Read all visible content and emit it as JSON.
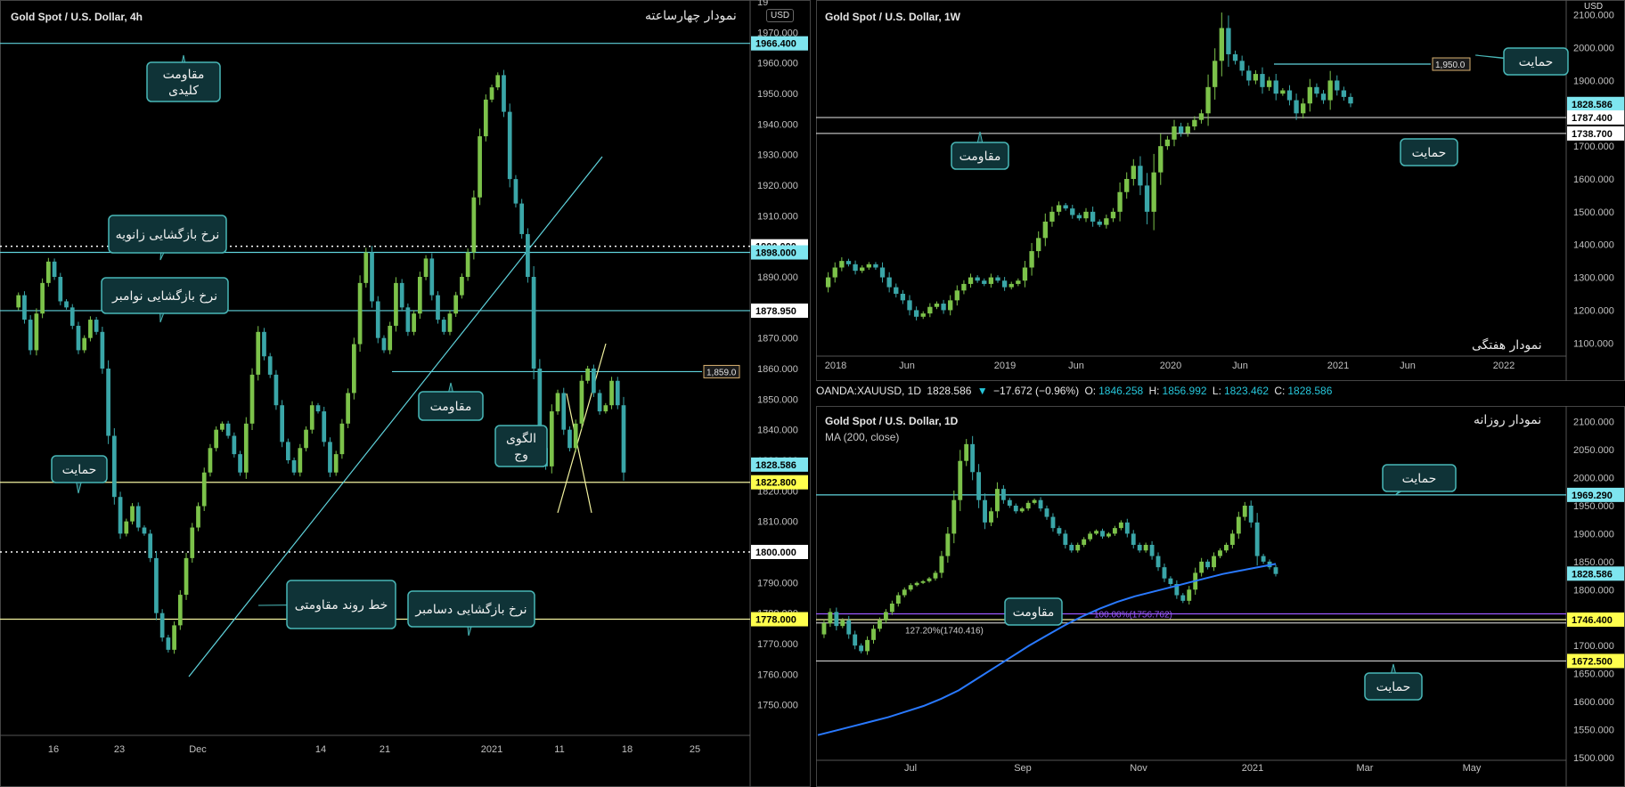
{
  "colors": {
    "bg": "#000000",
    "cyan": "#5fd3dc",
    "yellow": "#f3f3a0",
    "teal_box": "#0f3337",
    "teal_border": "#49b7b7",
    "candle": "#7cc24a",
    "candle_dn": "#3aa6a8",
    "ma": "#2979ff",
    "fib": "#9b59ff",
    "badge_cyan": "#7ee5ef",
    "badge_yellow": "#ffff4d",
    "badge_white": "#ffffff"
  },
  "info_bar": {
    "symbol": "OANDA:XAUUSD, 1D",
    "last": "1828.586",
    "arrow": "▼",
    "change": "−17.672 (−0.96%)",
    "o_label": "O:",
    "o": "1846.258",
    "h_label": "H:",
    "h": "1856.992",
    "l_label": "L:",
    "l": "1823.462",
    "c_label": "C:",
    "c": "1828.586"
  },
  "chart_data": [
    {
      "id": "h4",
      "type": "line",
      "title": "Gold Spot / U.S. Dollar, 4h",
      "subtitle_fa": "نمودار چهارساعته",
      "currency_badge": "USD",
      "ylim": [
        1740,
        1980
      ],
      "y_ticks": [
        "1750.000",
        "1760.000",
        "1770.000",
        "1780.000",
        "1790.000",
        "1800.000",
        "1810.000",
        "1820.000",
        "1830.000",
        "1840.000",
        "1850.000",
        "1860.000",
        "1870.000",
        "1880.000",
        "1890.000",
        "1900.000",
        "1910.000",
        "1920.000",
        "1930.000",
        "1940.000",
        "1950.000",
        "1960.000",
        "1970.000",
        "19"
      ],
      "x_ticks": [
        "16",
        "23",
        "Dec",
        "14",
        "21",
        "2021",
        "11",
        "18",
        "25"
      ],
      "levels": [
        {
          "value": 1966.4,
          "label": "1966.400",
          "style": "cyan",
          "badge": "cyan"
        },
        {
          "value": 1900.0,
          "label": "1900.000",
          "style": "dotted",
          "badge": "white"
        },
        {
          "value": 1898.0,
          "label": "1898.000",
          "style": "cyan",
          "badge": "cyan"
        },
        {
          "value": 1878.95,
          "label": "1878.950",
          "style": "cyan",
          "badge": "white"
        },
        {
          "value": 1859.0,
          "label": "1,859.0",
          "style": "cyan-partial",
          "badge": "small"
        },
        {
          "value": 1828.586,
          "label": "1828.586",
          "style": "none",
          "badge": "cyan"
        },
        {
          "value": 1822.8,
          "label": "1822.800",
          "style": "yellow",
          "badge": "yellow"
        },
        {
          "value": 1800.0,
          "label": "1800.000",
          "style": "dotted",
          "badge": "white"
        },
        {
          "value": 1778.0,
          "label": "1778.000",
          "style": "yellow",
          "badge": "yellow"
        }
      ],
      "price_path": [
        1880,
        1884,
        1876,
        1866,
        1878,
        1888,
        1895,
        1890,
        1882,
        1880,
        1874,
        1866,
        1870,
        1876,
        1872,
        1860,
        1838,
        1818,
        1806,
        1810,
        1815,
        1808,
        1806,
        1798,
        1780,
        1772,
        1768,
        1776,
        1786,
        1798,
        1808,
        1815,
        1826,
        1834,
        1840,
        1842,
        1838,
        1832,
        1826,
        1842,
        1858,
        1872,
        1864,
        1858,
        1848,
        1836,
        1830,
        1826,
        1834,
        1840,
        1848,
        1846,
        1836,
        1826,
        1832,
        1842,
        1852,
        1868,
        1888,
        1898,
        1882,
        1870,
        1866,
        1874,
        1888,
        1880,
        1872,
        1878,
        1890,
        1896,
        1884,
        1876,
        1872,
        1878,
        1884,
        1890,
        1898,
        1916,
        1936,
        1948,
        1952,
        1956,
        1944,
        1922,
        1914,
        1904,
        1890,
        1860,
        1834,
        1828,
        1846,
        1852,
        1840,
        1834,
        1842,
        1856,
        1860,
        1852,
        1846,
        1848,
        1856,
        1848,
        1826
      ],
      "annotations": [
        {
          "text": "مقاومت\nکلیدی"
        },
        {
          "text": "نرخ بازگشایی زانویه"
        },
        {
          "text": "نرخ بازگشایی نوامبر"
        },
        {
          "text": "مقاومت"
        },
        {
          "text": "الگوی\nوج"
        },
        {
          "text": "حمایت"
        },
        {
          "text": "خط روند مقاومتی"
        },
        {
          "text": "نرخ بازگشایی دسامبر"
        }
      ]
    },
    {
      "id": "w1",
      "type": "line",
      "title": "Gold Spot / U.S. Dollar, 1W",
      "subtitle_fa": "نمودار هفتگی",
      "currency_badge": "USD",
      "ylim": [
        1060,
        2140
      ],
      "y_ticks": [
        "1100.000",
        "1200.000",
        "1300.000",
        "1400.000",
        "1500.000",
        "1600.000",
        "1700.000",
        "1800.000",
        "1900.000",
        "2000.000",
        "2100.000"
      ],
      "x_ticks": [
        "2018",
        "Jun",
        "2019",
        "Jun",
        "2020",
        "Jun",
        "2021",
        "Jun",
        "2022"
      ],
      "levels": [
        {
          "value": 1950.0,
          "label": "1,950.0",
          "style": "cyan-partial",
          "badge": "small"
        },
        {
          "value": 1828.586,
          "label": "1828.586",
          "style": "none",
          "badge": "cyan"
        },
        {
          "value": 1787.4,
          "label": "1787.400",
          "style": "white",
          "badge": "white"
        },
        {
          "value": 1738.7,
          "label": "1738.700",
          "style": "white",
          "badge": "white"
        }
      ],
      "price_path": [
        1270,
        1300,
        1330,
        1350,
        1340,
        1320,
        1330,
        1340,
        1330,
        1300,
        1270,
        1250,
        1230,
        1200,
        1180,
        1190,
        1210,
        1220,
        1200,
        1230,
        1260,
        1280,
        1300,
        1290,
        1280,
        1300,
        1290,
        1270,
        1280,
        1290,
        1330,
        1380,
        1420,
        1470,
        1500,
        1520,
        1510,
        1490,
        1480,
        1500,
        1470,
        1460,
        1480,
        1500,
        1560,
        1600,
        1640,
        1580,
        1500,
        1620,
        1700,
        1720,
        1760,
        1740,
        1760,
        1780,
        1800,
        1880,
        1960,
        2060,
        1980,
        1960,
        1930,
        1900,
        1920,
        1880,
        1900,
        1860,
        1870,
        1840,
        1800,
        1830,
        1880,
        1860,
        1840,
        1900,
        1870,
        1850,
        1830
      ],
      "annotations": [
        {
          "text": "مقاومت"
        },
        {
          "text": "حمایت"
        },
        {
          "text": "حمایت"
        }
      ]
    },
    {
      "id": "d1",
      "type": "line",
      "title": "Gold Spot / U.S. Dollar, 1D",
      "subtitle_fa": "نمودار روزانه",
      "indicator": "MA (200, close)",
      "ylim": [
        1495,
        2125
      ],
      "y_ticks": [
        "1500.000",
        "1550.000",
        "1600.000",
        "1650.000",
        "1700.000",
        "1750.000",
        "1800.000",
        "1850.000",
        "1900.000",
        "1950.000",
        "2000.000",
        "2050.000",
        "2100.000"
      ],
      "x_ticks": [
        "Jul",
        "Sep",
        "Nov",
        "2021",
        "Mar",
        "May"
      ],
      "levels": [
        {
          "value": 1969.29,
          "label": "1969.290",
          "style": "cyan",
          "badge": "cyan"
        },
        {
          "value": 1828.586,
          "label": "1828.586",
          "style": "none",
          "badge": "cyan"
        },
        {
          "value": 1756.762,
          "label": "100.00%(1756.762)",
          "style": "fib",
          "badge": "none"
        },
        {
          "value": 1746.4,
          "label": "1746.400",
          "style": "yellow",
          "badge": "yellow"
        },
        {
          "value": 1740.416,
          "label": "127.20%(1740.416)",
          "style": "white",
          "badge": "none"
        },
        {
          "value": 1672.5,
          "label": "1672.500",
          "style": "white",
          "badge": "yellow"
        }
      ],
      "price_path": [
        1720,
        1740,
        1760,
        1735,
        1745,
        1720,
        1700,
        1690,
        1710,
        1730,
        1745,
        1760,
        1775,
        1790,
        1800,
        1808,
        1812,
        1815,
        1820,
        1830,
        1860,
        1900,
        1960,
        2030,
        2060,
        2010,
        1960,
        1920,
        1940,
        1980,
        1960,
        1950,
        1940,
        1945,
        1955,
        1960,
        1945,
        1930,
        1910,
        1900,
        1880,
        1870,
        1880,
        1890,
        1900,
        1905,
        1895,
        1900,
        1910,
        1920,
        1900,
        1880,
        1870,
        1880,
        1860,
        1840,
        1820,
        1810,
        1790,
        1780,
        1800,
        1830,
        1850,
        1840,
        1860,
        1870,
        1880,
        1900,
        1930,
        1950,
        1920,
        1860,
        1850,
        1840,
        1828
      ],
      "ma_path": [
        1540,
        1548,
        1556,
        1564,
        1572,
        1582,
        1592,
        1605,
        1620,
        1640,
        1660,
        1680,
        1700,
        1718,
        1736,
        1752,
        1766,
        1778,
        1788,
        1796,
        1804,
        1812,
        1820,
        1828,
        1834,
        1840,
        1846
      ],
      "annotations": [
        {
          "text": "مقاومت"
        },
        {
          "text": "حمایت"
        },
        {
          "text": "حمایت"
        }
      ]
    }
  ]
}
